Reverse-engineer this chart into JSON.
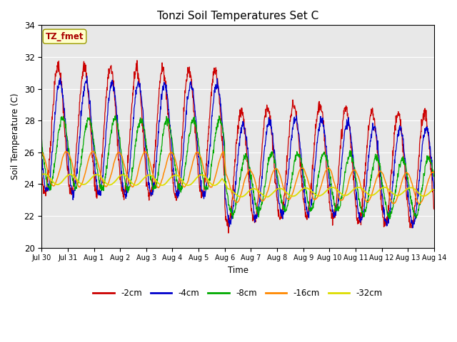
{
  "title": "Tonzi Soil Temperatures Set C",
  "xlabel": "Time",
  "ylabel": "Soil Temperature (C)",
  "ylim": [
    20,
    34
  ],
  "yticks": [
    20,
    22,
    24,
    26,
    28,
    30,
    32,
    34
  ],
  "x_tick_labels": [
    "Jul 30",
    "Jul 31",
    "Aug 1",
    "Aug 2",
    "Aug 3",
    "Aug 4",
    "Aug 5",
    "Aug 6",
    "Aug 7",
    "Aug 8",
    "Aug 9",
    "Aug 10",
    "Aug 11",
    "Aug 12",
    "Aug 13",
    "Aug 14"
  ],
  "annotation_text": "TZ_fmet",
  "colors": {
    "-2cm": "#cc0000",
    "-4cm": "#0000cc",
    "-8cm": "#00aa00",
    "-16cm": "#ff8800",
    "-32cm": "#dddd00"
  },
  "legend_labels": [
    "-2cm",
    "-4cm",
    "-8cm",
    "-16cm",
    "-32cm"
  ],
  "axes_bg_color": "#e8e8e8",
  "fig_bg_color": "#ffffff"
}
